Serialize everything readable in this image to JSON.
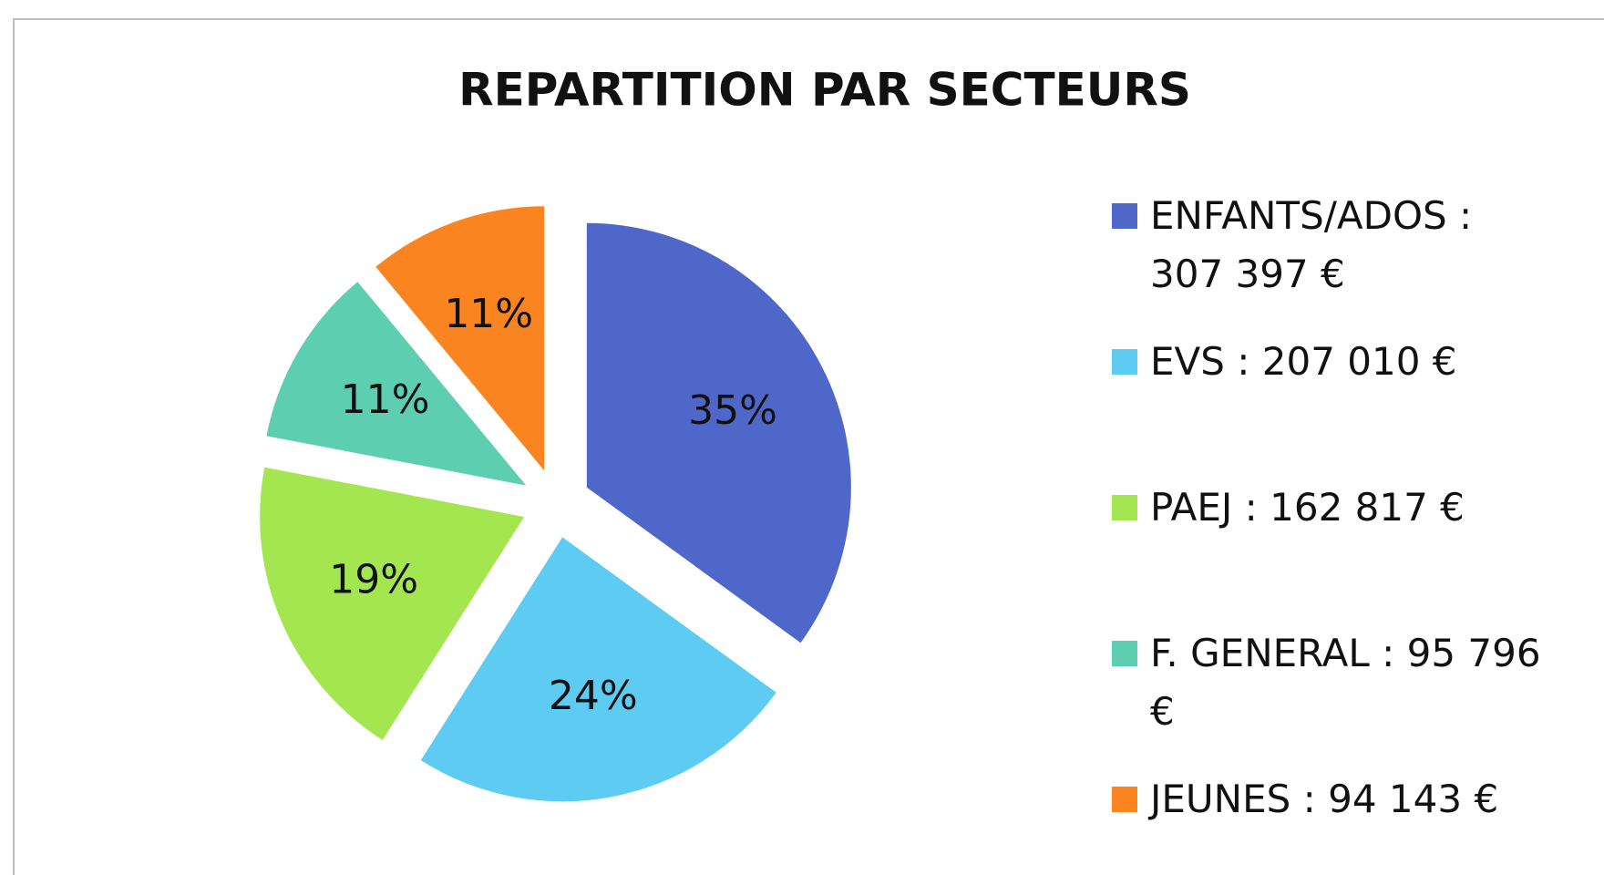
{
  "chart_data": {
    "type": "pie",
    "title": "REPARTITION PAR SECTEURS",
    "categories": [
      "ENFANTS/ADOS : 307 397 €",
      "EVS : 207 010 €",
      "PAEJ : 162 817 €",
      "F. GENERAL : 95 796 €",
      "JEUNES : 94 143 €"
    ],
    "values": [
      35,
      24,
      19,
      11,
      11
    ],
    "value_labels": [
      "35%",
      "24%",
      "19%",
      "11%",
      "11%"
    ],
    "colors": [
      "#4f67c8",
      "#5ecbf2",
      "#a4e64f",
      "#5dcfb0",
      "#f98420"
    ]
  }
}
